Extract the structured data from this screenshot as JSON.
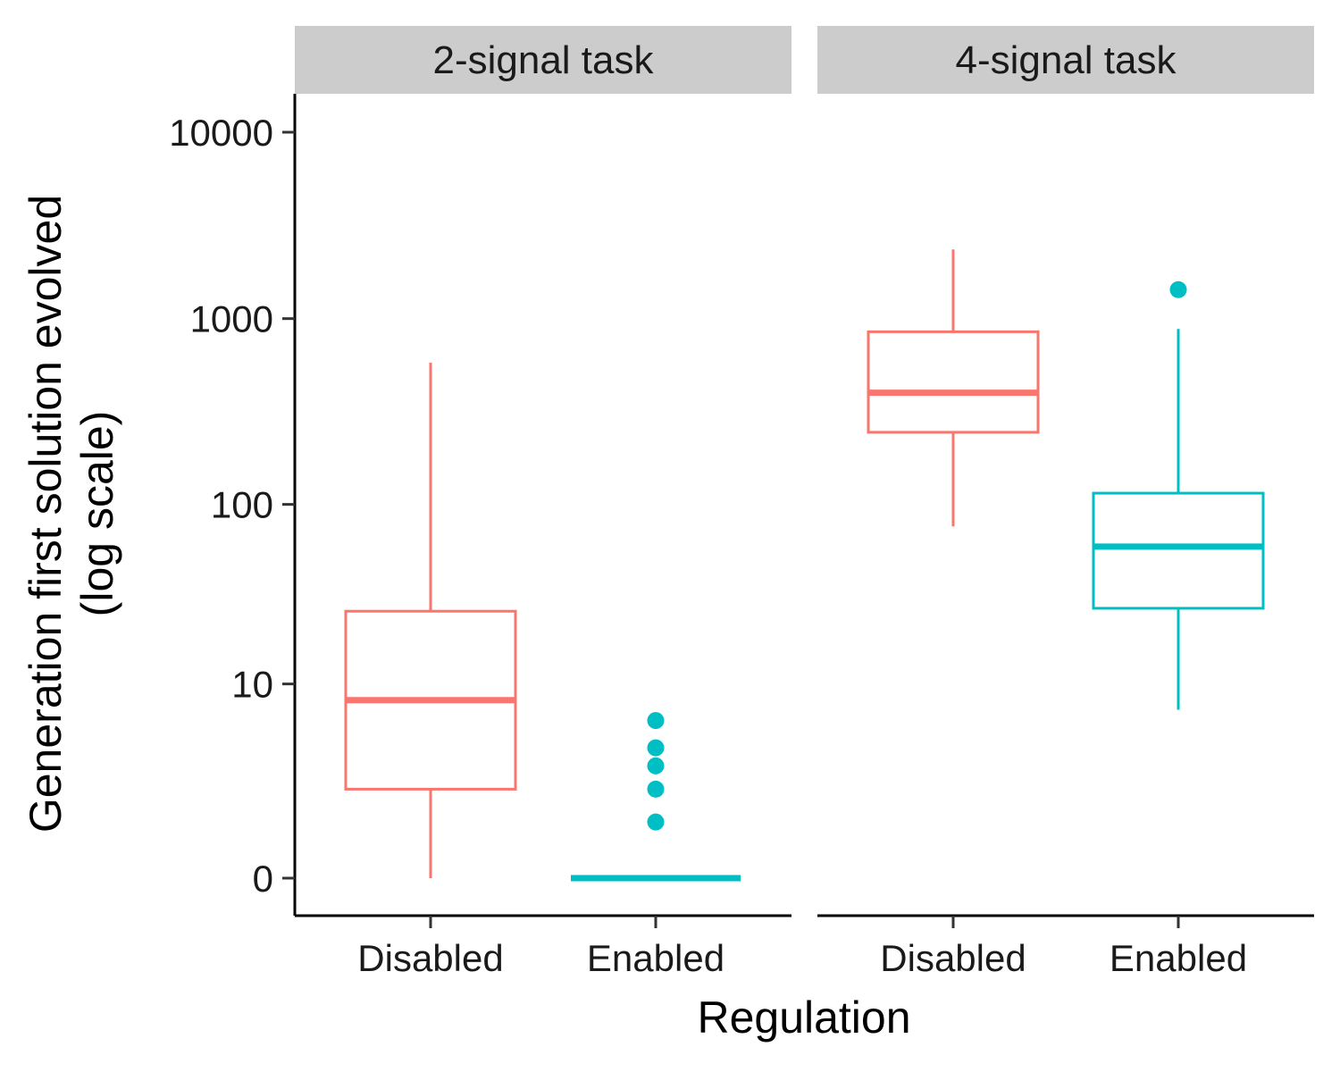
{
  "chart_data": {
    "type": "boxplot",
    "xlabel": "Regulation",
    "ylabel_lines": [
      "Generation first solution evolved",
      "(log scale)"
    ],
    "y_scale": "log1p",
    "y_ticks": [
      0,
      10,
      100,
      1000,
      10000
    ],
    "y_tick_labels": [
      "0",
      "10",
      "100",
      "1000",
      "10000"
    ],
    "categories": [
      "Disabled",
      "Enabled"
    ],
    "colors": {
      "Disabled": "#F8766D",
      "Enabled": "#00BFC4"
    },
    "strip_background": "#CCCCCC",
    "grid": false,
    "legend": "none",
    "panels": [
      {
        "title": "2-signal task",
        "boxes": [
          {
            "category": "Disabled",
            "whisker_low": 0,
            "q1": 2,
            "median": 8,
            "q3": 26,
            "whisker_high": 580,
            "outliers": []
          },
          {
            "category": "Enabled",
            "whisker_low": 0,
            "q1": 0,
            "median": 0,
            "q3": 0,
            "whisker_high": 0,
            "outliers": [
              1,
              2,
              3,
              4,
              6
            ]
          }
        ]
      },
      {
        "title": "4-signal task",
        "boxes": [
          {
            "category": "Disabled",
            "whisker_low": 76,
            "q1": 245,
            "median": 400,
            "q3": 850,
            "whisker_high": 2350,
            "outliers": []
          },
          {
            "category": "Enabled",
            "whisker_low": 7,
            "q1": 27,
            "median": 59,
            "q3": 115,
            "whisker_high": 880,
            "outliers": [
              1430
            ]
          }
        ]
      }
    ]
  }
}
